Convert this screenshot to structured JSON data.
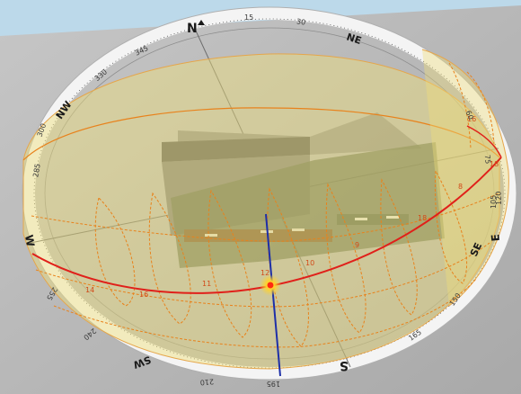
{
  "viewport": {
    "sky_color": "#bcd9ea",
    "ground_color": "#b5b5b5",
    "ring_color": "#f4f4f4",
    "dome_fill": "#f0df7a",
    "analemma_color": "#e8821c",
    "sun_path_color": "#e0201a",
    "sun_color": "#ff2a10",
    "shadow_color": "#5f6b52",
    "stick_color": "#1d2fa8"
  },
  "compass": {
    "cardinals": {
      "N": "N",
      "NE": "NE",
      "E": "E",
      "SE": "SE",
      "S": "S",
      "SW": "SW",
      "W": "W",
      "NW": "NW"
    },
    "degrees": {
      "d15": "15",
      "d30": "30",
      "d60": "60",
      "d75": "75",
      "d105": "105",
      "d120": "120",
      "d150": "150",
      "d165": "165",
      "d195": "195",
      "d210": "210",
      "d240": "240",
      "d255": "255",
      "d285": "285",
      "d300": "300",
      "d330": "330",
      "d345": "345"
    }
  },
  "hour_labels": [
    "14",
    "12",
    "11",
    "16",
    "18",
    "8",
    "9",
    "10",
    "16",
    "18"
  ],
  "sun": {
    "state": "visible"
  }
}
